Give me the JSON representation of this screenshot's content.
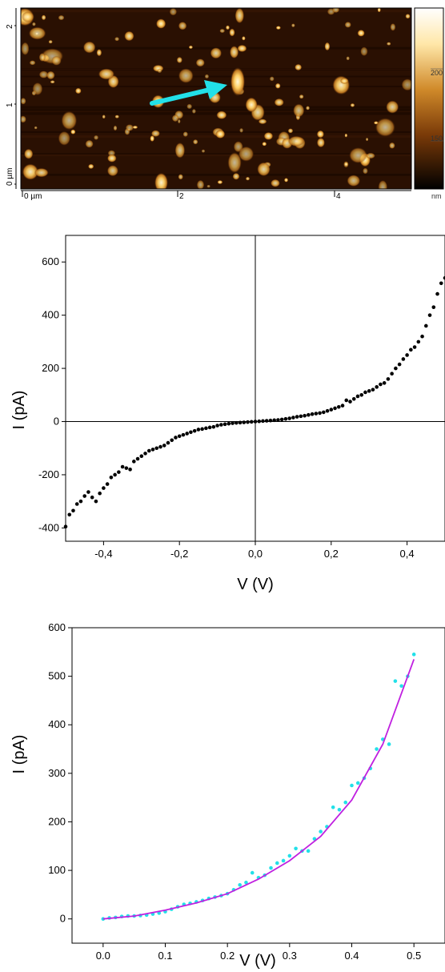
{
  "afm": {
    "x_ticks": [
      "0 µm",
      "2",
      "4"
    ],
    "y_ticks": [
      "0 µm",
      "1",
      "2"
    ],
    "colorbar_ticks": [
      "200",
      "150"
    ],
    "colorbar_unit": "nm",
    "arrow_color": "#22e0e8",
    "colors": {
      "dark": "#1a0800",
      "mid": "#8a4a10",
      "bright": "#ffe28a",
      "peak": "#fff8d8"
    }
  },
  "chart_data": [
    {
      "type": "scatter",
      "title": "",
      "xlabel": "V (V)",
      "ylabel": "I (pA)",
      "xlim": [
        -0.5,
        0.5
      ],
      "ylim": [
        -450,
        700
      ],
      "xticks": [
        "-0,4",
        "-0,2",
        "0,0",
        "0,2",
        "0,4"
      ],
      "yticks": [
        "-400",
        "-200",
        "0",
        "200",
        "400",
        "600"
      ],
      "grid": false,
      "legend": "none",
      "point_color": "#000000",
      "series": [
        {
          "x": [
            -0.5,
            -0.49,
            -0.48,
            -0.47,
            -0.46,
            -0.45,
            -0.44,
            -0.43,
            -0.42,
            -0.41,
            -0.4,
            -0.39,
            -0.38,
            -0.37,
            -0.36,
            -0.35,
            -0.34,
            -0.33,
            -0.32,
            -0.31,
            -0.3,
            -0.29,
            -0.28,
            -0.27,
            -0.26,
            -0.25,
            -0.24,
            -0.23,
            -0.22,
            -0.21,
            -0.2,
            -0.19,
            -0.18,
            -0.17,
            -0.16,
            -0.15,
            -0.14,
            -0.13,
            -0.12,
            -0.11,
            -0.1,
            -0.09,
            -0.08,
            -0.07,
            -0.06,
            -0.05,
            -0.04,
            -0.03,
            -0.02,
            -0.01,
            0.0,
            0.01,
            0.02,
            0.03,
            0.04,
            0.05,
            0.06,
            0.07,
            0.08,
            0.09,
            0.1,
            0.11,
            0.12,
            0.13,
            0.14,
            0.15,
            0.16,
            0.17,
            0.18,
            0.19,
            0.2,
            0.21,
            0.22,
            0.23,
            0.24,
            0.25,
            0.26,
            0.27,
            0.28,
            0.29,
            0.3,
            0.31,
            0.32,
            0.33,
            0.34,
            0.35,
            0.36,
            0.37,
            0.38,
            0.39,
            0.4,
            0.41,
            0.42,
            0.43,
            0.44,
            0.45,
            0.46,
            0.47,
            0.48,
            0.49,
            0.5
          ],
          "y": [
            -395,
            -350,
            -335,
            -310,
            -300,
            -280,
            -265,
            -285,
            -300,
            -270,
            -250,
            -235,
            -210,
            -200,
            -190,
            -170,
            -175,
            -180,
            -150,
            -140,
            -130,
            -120,
            -110,
            -105,
            -100,
            -95,
            -90,
            -80,
            -70,
            -60,
            -55,
            -50,
            -45,
            -40,
            -35,
            -30,
            -28,
            -25,
            -22,
            -20,
            -15,
            -12,
            -10,
            -8,
            -6,
            -5,
            -4,
            -3,
            -2,
            -1,
            0,
            1,
            2,
            3,
            4,
            5,
            6,
            8,
            10,
            12,
            15,
            18,
            20,
            22,
            25,
            28,
            30,
            32,
            35,
            40,
            45,
            50,
            55,
            60,
            80,
            75,
            85,
            95,
            100,
            110,
            115,
            120,
            130,
            140,
            145,
            160,
            180,
            200,
            215,
            235,
            250,
            270,
            280,
            300,
            320,
            360,
            400,
            430,
            480,
            520,
            540
          ]
        }
      ]
    },
    {
      "type": "scatter",
      "title": "",
      "xlabel": "V (V)",
      "ylabel": "I (pA)",
      "xlim": [
        -0.05,
        0.55
      ],
      "ylim": [
        -50,
        600
      ],
      "xticks": [
        "0.0",
        "0.1",
        "0.2",
        "0.3",
        "0.4",
        "0.5"
      ],
      "yticks": [
        "0",
        "100",
        "200",
        "300",
        "400",
        "500",
        "600"
      ],
      "grid": false,
      "legend": "none",
      "point_color": "#22e0e8",
      "fit_color": "#c020e0",
      "series": [
        {
          "x": [
            0.0,
            0.01,
            0.02,
            0.03,
            0.04,
            0.05,
            0.06,
            0.07,
            0.08,
            0.09,
            0.1,
            0.11,
            0.12,
            0.13,
            0.14,
            0.15,
            0.16,
            0.17,
            0.18,
            0.19,
            0.2,
            0.21,
            0.22,
            0.23,
            0.24,
            0.25,
            0.26,
            0.27,
            0.28,
            0.29,
            0.3,
            0.31,
            0.32,
            0.33,
            0.34,
            0.35,
            0.36,
            0.37,
            0.38,
            0.39,
            0.4,
            0.41,
            0.42,
            0.43,
            0.44,
            0.45,
            0.46,
            0.47,
            0.48,
            0.49,
            0.5
          ],
          "y": [
            0,
            2,
            3,
            5,
            6,
            6,
            7,
            8,
            10,
            12,
            15,
            20,
            25,
            30,
            32,
            35,
            38,
            42,
            45,
            48,
            52,
            60,
            70,
            75,
            95,
            85,
            90,
            105,
            115,
            120,
            130,
            145,
            140,
            140,
            165,
            180,
            190,
            230,
            225,
            240,
            275,
            280,
            290,
            310,
            350,
            370,
            360,
            490,
            480,
            500,
            545
          ]
        }
      ],
      "fit": {
        "x": [
          0.0,
          0.05,
          0.1,
          0.15,
          0.2,
          0.25,
          0.3,
          0.35,
          0.4,
          0.45,
          0.5
        ],
        "y": [
          0,
          6,
          18,
          33,
          52,
          82,
          120,
          170,
          245,
          360,
          535
        ]
      }
    }
  ]
}
